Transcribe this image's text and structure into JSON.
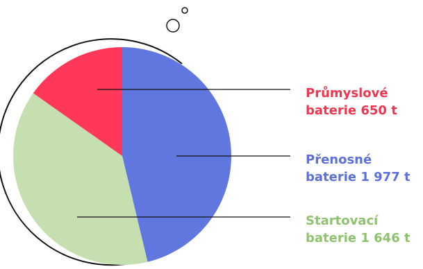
{
  "chart_data": {
    "type": "pie",
    "unit": "t",
    "slices": [
      {
        "name": "Přenosné",
        "line2": "baterie 1 977 t",
        "value": 1977,
        "color": "#6177E0"
      },
      {
        "name": "Startovací",
        "line2": "baterie 1 646 t",
        "value": 1646,
        "color": "#C6DFB0"
      },
      {
        "name": "Průmyslové",
        "line2": "baterie 650 t",
        "value": 650,
        "color": "#FF3859"
      }
    ],
    "label_colors": {
      "Přenosné": "#5C6FDB",
      "Startovací": "#8FC26E",
      "Průmyslové": "#F0364F"
    },
    "decoration": "bubbles-icon",
    "legend": "right"
  }
}
